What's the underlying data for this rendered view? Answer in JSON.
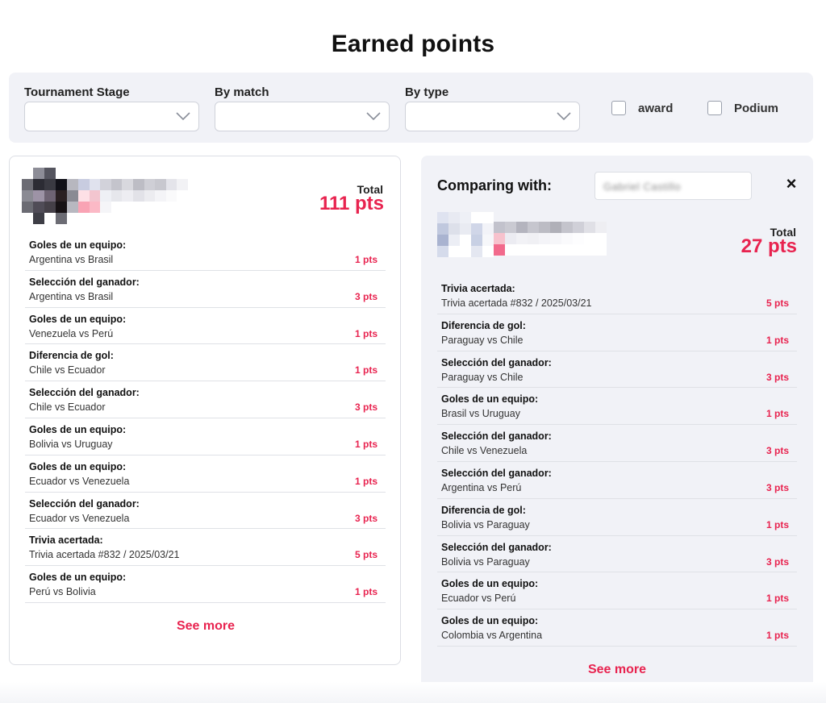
{
  "page": {
    "title": "Earned points"
  },
  "filters": {
    "stage": {
      "label": "Tournament Stage",
      "value": ""
    },
    "match": {
      "label": "By match",
      "value": ""
    },
    "type": {
      "label": "By type",
      "value": ""
    },
    "award_label": "award",
    "podium_label": "Podium"
  },
  "left": {
    "total_label": "Total",
    "total_value": "111 pts",
    "items": [
      {
        "title": "Goles de un equipo:",
        "subtitle": "Argentina vs Brasil",
        "points": "1 pts"
      },
      {
        "title": "Selección del ganador:",
        "subtitle": "Argentina vs Brasil",
        "points": "3 pts"
      },
      {
        "title": "Goles de un equipo:",
        "subtitle": "Venezuela vs Perú",
        "points": "1 pts"
      },
      {
        "title": "Diferencia de gol:",
        "subtitle": "Chile vs Ecuador",
        "points": "1 pts"
      },
      {
        "title": "Selección del ganador:",
        "subtitle": "Chile vs Ecuador",
        "points": "3 pts"
      },
      {
        "title": "Goles de un equipo:",
        "subtitle": "Bolivia vs Uruguay",
        "points": "1 pts"
      },
      {
        "title": "Goles de un equipo:",
        "subtitle": "Ecuador vs Venezuela",
        "points": "1 pts"
      },
      {
        "title": "Selección del ganador:",
        "subtitle": "Ecuador vs Venezuela",
        "points": "3 pts"
      },
      {
        "title": "Trivia acertada:",
        "subtitle": "Trivia acertada #832 / 2025/03/21",
        "points": "5 pts"
      },
      {
        "title": "Goles de un equipo:",
        "subtitle": "Perú vs Bolivia",
        "points": "1 pts"
      }
    ],
    "see_more": "See more"
  },
  "right": {
    "comparing_label": "Comparing with:",
    "compare_value": "Gabriel Castillo",
    "close_icon": "×",
    "total_label": "Total",
    "total_value": "27 pts",
    "items": [
      {
        "title": "Trivia acertada:",
        "subtitle": "Trivia acertada #832 / 2025/03/21",
        "points": "5 pts"
      },
      {
        "title": "Diferencia de gol:",
        "subtitle": "Paraguay vs Chile",
        "points": "1 pts"
      },
      {
        "title": "Selección del ganador:",
        "subtitle": "Paraguay vs Chile",
        "points": "3 pts"
      },
      {
        "title": "Goles de un equipo:",
        "subtitle": "Brasil vs Uruguay",
        "points": "1 pts"
      },
      {
        "title": "Selección del ganador:",
        "subtitle": "Chile vs Venezuela",
        "points": "3 pts"
      },
      {
        "title": "Selección del ganador:",
        "subtitle": "Argentina vs Perú",
        "points": "3 pts"
      },
      {
        "title": "Diferencia de gol:",
        "subtitle": "Bolivia vs Paraguay",
        "points": "1 pts"
      },
      {
        "title": "Selección del ganador:",
        "subtitle": "Bolivia vs Paraguay",
        "points": "3 pts"
      },
      {
        "title": "Goles de un equipo:",
        "subtitle": "Ecuador vs Perú",
        "points": "1 pts"
      },
      {
        "title": "Goles de un equipo:",
        "subtitle": "Colombia vs Argentina",
        "points": "1 pts"
      }
    ],
    "see_more": "See more"
  },
  "colors": {
    "accent": "#e8234f",
    "panel_bg": "#f1f2f7"
  }
}
